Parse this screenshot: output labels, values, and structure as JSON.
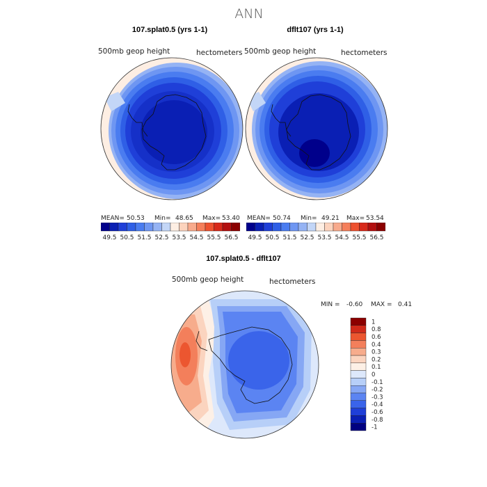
{
  "title": "ANN",
  "panels": [
    {
      "title": "107.splat0.5 (yrs 1-1)",
      "left_label": "500mb  geop  height",
      "right_label": "hectometers",
      "mean_label": "MEAN=",
      "mean": "50.53",
      "min_label": "Min=",
      "min": "48.65",
      "max_label": "Max=",
      "max": "53.40"
    },
    {
      "title": "dflt107 (yrs 1-1)",
      "left_label": "500mb  geop  height",
      "right_label": "hectometers",
      "mean_label": "MEAN=",
      "mean": "50.74",
      "min_label": "Min=",
      "min": "49.21",
      "max_label": "Max=",
      "max": "53.54"
    }
  ],
  "diff": {
    "title": "107.splat0.5 - dflt107",
    "left_label": "500mb  geop  height",
    "right_label": "hectometers",
    "min_label": "MIN =",
    "min": "-0.60",
    "max_label": "MAX =",
    "max": "0.41"
  },
  "colors": {
    "top_scale": [
      "#00008b",
      "#0a1fb4",
      "#1f3fd8",
      "#2f5fe6",
      "#4a7cf0",
      "#6e96f2",
      "#95b3f4",
      "#c3d6f7",
      "#fdeee3",
      "#fcd3bd",
      "#f8aa8c",
      "#f57f5b",
      "#ee5230",
      "#d8291a",
      "#b30f0f",
      "#8b0000"
    ],
    "diff_scale": [
      "#000080",
      "#0a1fb4",
      "#1f3fd8",
      "#3a64ea",
      "#5b84f2",
      "#86a7f4",
      "#b7cff8",
      "#dde8fb",
      "#fdf0e6",
      "#fbd4bf",
      "#f7ac8c",
      "#f37f5b",
      "#ec5630",
      "#d02a1a",
      "#8b0000"
    ]
  },
  "chart_data": [
    {
      "type": "heatmap",
      "title": "107.splat0.5 (yrs 1-1)",
      "projection": "south polar stereographic",
      "variable": "500mb geop height",
      "units": "hectometers",
      "mean": 50.53,
      "min": 48.65,
      "max": 53.4,
      "colorbar_ticks": [
        "49.5",
        "50.5",
        "51.5",
        "52.5",
        "53.5",
        "54.5",
        "55.5",
        "56.5"
      ],
      "contour_levels": [
        49.5,
        50.0,
        50.5,
        51.0,
        51.5,
        52.0,
        52.5,
        53.0,
        53.5
      ]
    },
    {
      "type": "heatmap",
      "title": "dflt107 (yrs 1-1)",
      "projection": "south polar stereographic",
      "variable": "500mb geop height",
      "units": "hectometers",
      "mean": 50.74,
      "min": 49.21,
      "max": 53.54,
      "colorbar_ticks": [
        "49.5",
        "50.5",
        "51.5",
        "52.5",
        "53.5",
        "54.5",
        "55.5",
        "56.5"
      ],
      "contour_levels": [
        49.5,
        50.0,
        50.5,
        51.0,
        51.5,
        52.0,
        52.5,
        53.0,
        53.5
      ]
    },
    {
      "type": "heatmap",
      "title": "107.splat0.5 - dflt107",
      "projection": "south polar stereographic",
      "variable": "500mb geop height",
      "units": "hectometers",
      "min": -0.6,
      "max": 0.41,
      "colorbar_ticks": [
        "1",
        "0.8",
        "0.6",
        "0.4",
        "0.3",
        "0.2",
        "0.1",
        "0",
        "-0.1",
        "-0.2",
        "-0.3",
        "-0.4",
        "-0.6",
        "-0.8",
        "-1"
      ],
      "contour_levels": [
        -1,
        -0.8,
        -0.6,
        -0.4,
        -0.3,
        -0.2,
        -0.1,
        0,
        0.1,
        0.2,
        0.3,
        0.4,
        0.6,
        0.8,
        1
      ]
    }
  ]
}
